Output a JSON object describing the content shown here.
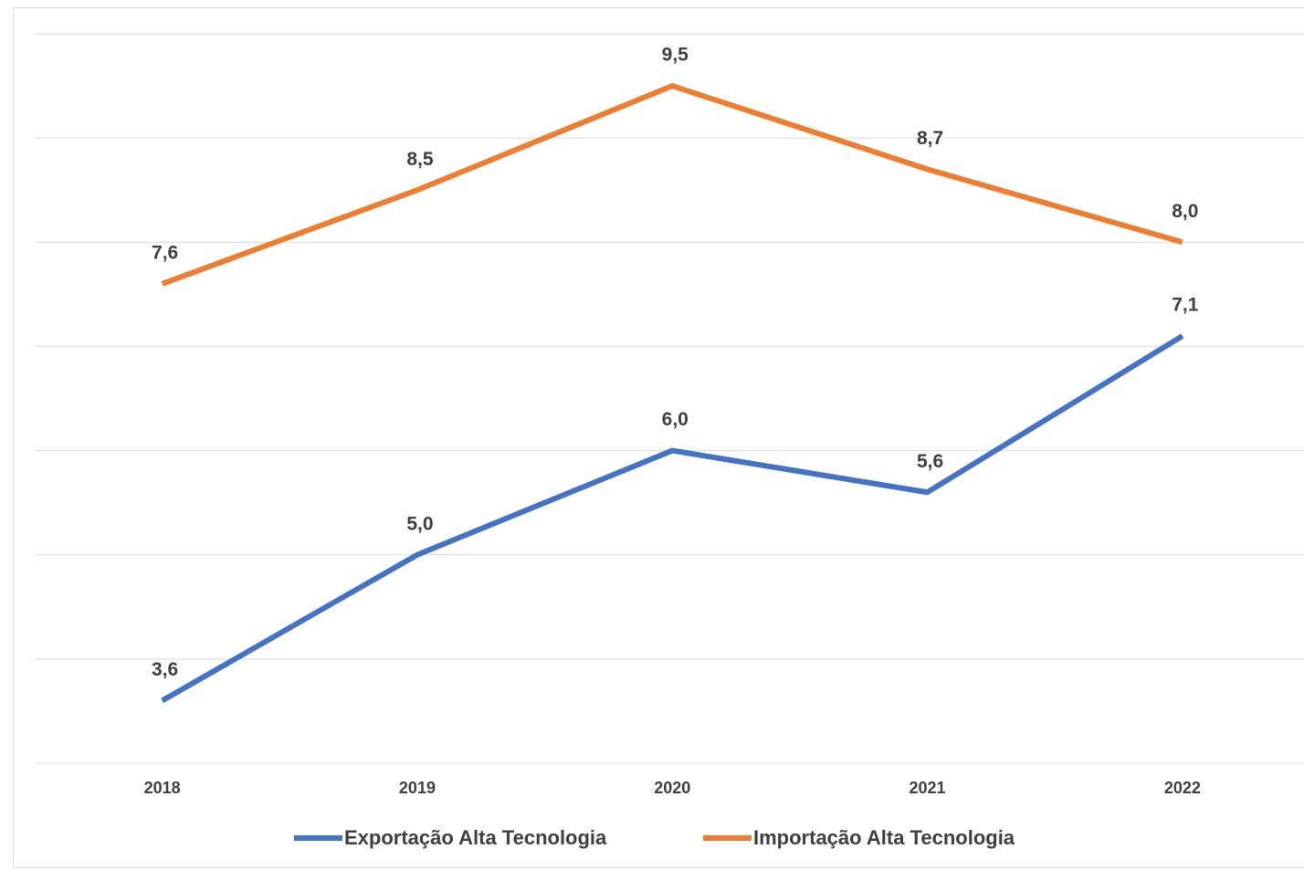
{
  "chart_data": {
    "type": "line",
    "categories": [
      "2018",
      "2019",
      "2020",
      "2021",
      "2022"
    ],
    "series": [
      {
        "name": "Exportação Alta Tecnologia",
        "color": "#4472c4",
        "values": [
          3.6,
          5.0,
          6.0,
          5.6,
          7.1
        ],
        "value_labels": [
          "3,6",
          "5,0",
          "6,0",
          "5,6",
          "7,1"
        ]
      },
      {
        "name": "Importação Alta Tecnologia",
        "color": "#ed7d31",
        "values": [
          7.6,
          8.5,
          9.5,
          8.7,
          8.0
        ],
        "value_labels": [
          "7,6",
          "8,5",
          "9,5",
          "8,7",
          "8,0"
        ]
      }
    ],
    "ylim": [
      3,
      10
    ],
    "yticks": [
      3,
      4,
      5,
      6,
      7,
      8,
      9,
      10
    ],
    "grid": true,
    "legend": "bottom"
  }
}
